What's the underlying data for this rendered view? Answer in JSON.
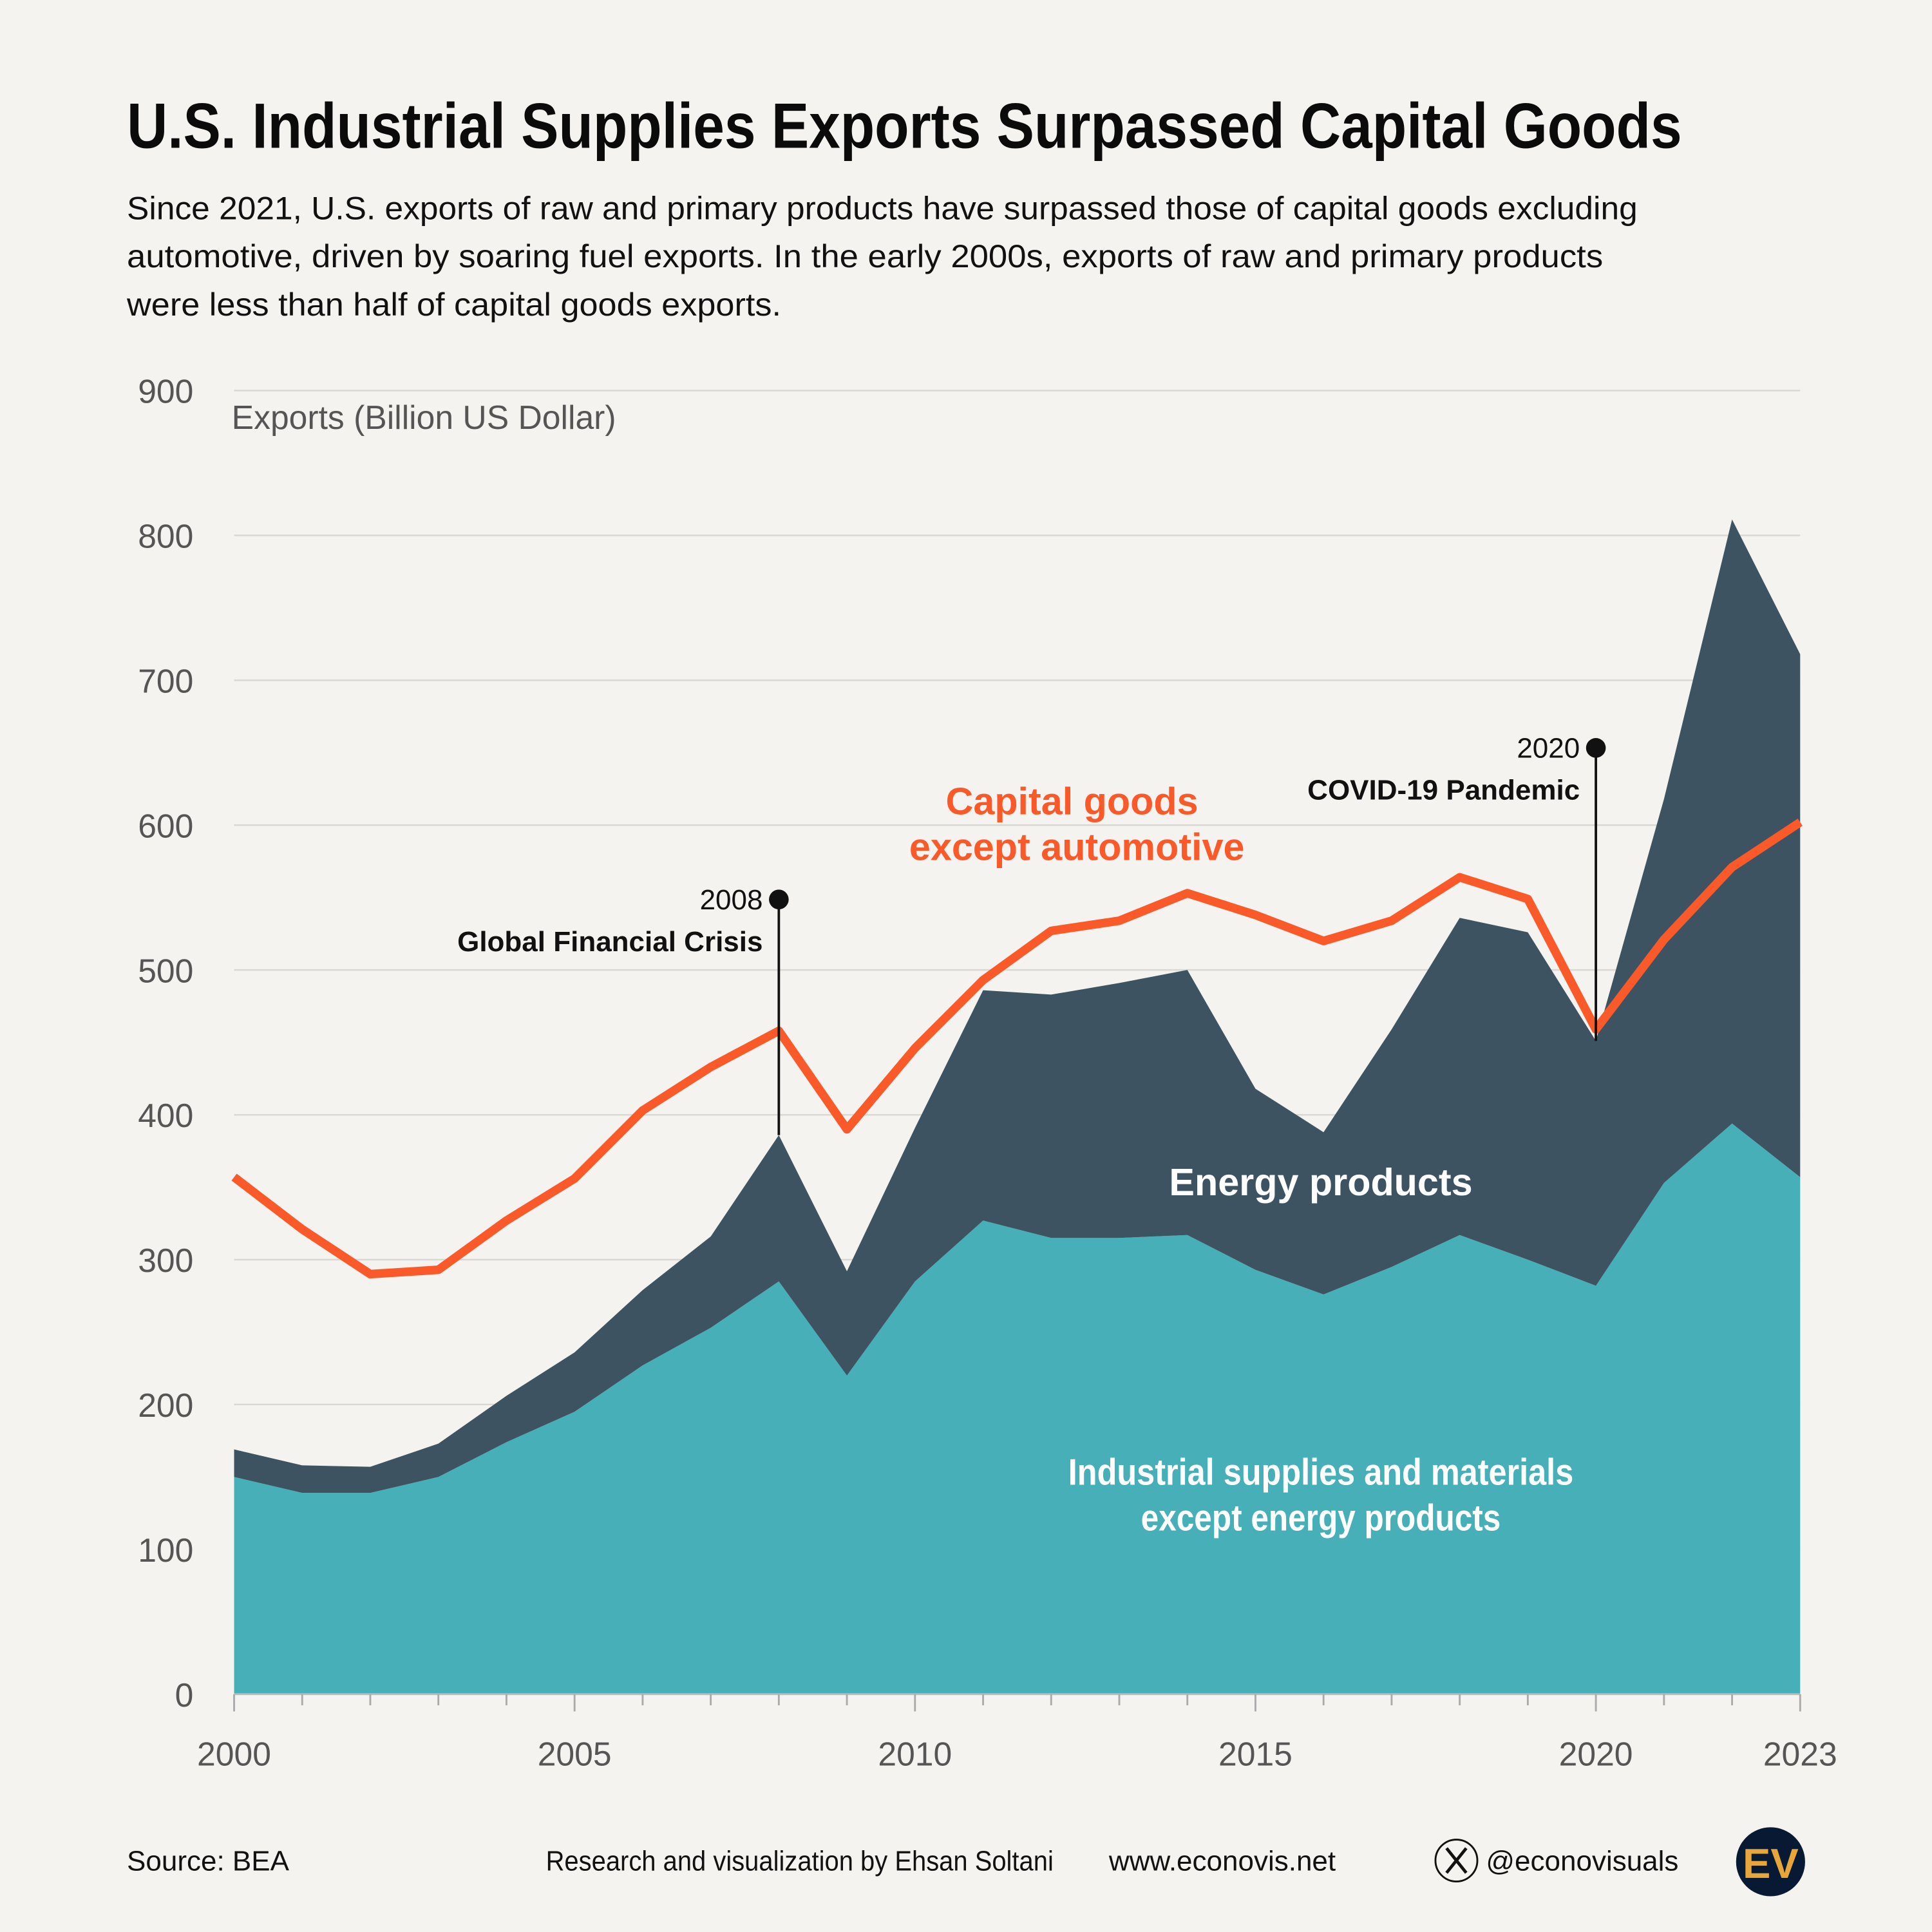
{
  "title": "U.S. Industrial Supplies Exports Surpassed Capital Goods",
  "subtitle": [
    "Since 2021, U.S. exports of raw and primary products have surpassed those of capital goods excluding",
    "automotive, driven by soaring fuel exports. In the early 2000s, exports of raw and primary products",
    "were less than half of capital goods exports."
  ],
  "footer": {
    "source": "Source: BEA",
    "credit": "Research and visualization by Ehsan Soltani",
    "website": "www.econovis.net",
    "handle": "@econovisuals",
    "logo_text": "EV"
  },
  "chart_data": {
    "type": "area",
    "stacked": true,
    "title": "U.S. Industrial Supplies Exports Surpassed Capital Goods",
    "ylabel": "Exports (Billion US Dollar)",
    "xlabel": "",
    "ylim": [
      0,
      900
    ],
    "yticks": [
      "0",
      "100",
      "200",
      "300",
      "400",
      "500",
      "600",
      "700",
      "800",
      "900"
    ],
    "xticks": [
      "2000",
      "2005",
      "2010",
      "2015",
      "2020",
      "2023"
    ],
    "grid": "horizontal",
    "x": [
      2000,
      2001,
      2002,
      2003,
      2004,
      2005,
      2006,
      2007,
      2008,
      2009,
      2010,
      2011,
      2012,
      2013,
      2014,
      2015,
      2016,
      2017,
      2018,
      2019,
      2020,
      2021,
      2022,
      2023
    ],
    "series": [
      {
        "name": "Industrial supplies and materials except energy products",
        "kind": "area",
        "color": "#46afb7",
        "values": [
          150,
          139,
          139,
          150,
          174,
          195,
          227,
          253,
          285,
          220,
          285,
          327,
          315,
          315,
          317,
          293,
          276,
          295,
          317,
          300,
          282,
          353,
          394,
          357
        ]
      },
      {
        "name": "Energy products",
        "kind": "area",
        "color": "#3d5361",
        "values": [
          19,
          19,
          18,
          23,
          32,
          41,
          52,
          63,
          101,
          72,
          106,
          159,
          168,
          176,
          183,
          125,
          112,
          164,
          219,
          226,
          169,
          265,
          417,
          361
        ]
      },
      {
        "name": "Capital goods except automotive",
        "kind": "line",
        "color": "#fa5a2a",
        "values": [
          357,
          321,
          290,
          293,
          327,
          356,
          403,
          433,
          458,
          390,
          446,
          493,
          527,
          534,
          553,
          538,
          520,
          534,
          564,
          549,
          459,
          521,
          571,
          602
        ]
      }
    ],
    "series_labels": {
      "industrial": [
        "Industrial supplies and materials",
        "except energy products"
      ],
      "energy": "Energy products",
      "capital": [
        "Capital goods",
        "except automotive"
      ]
    },
    "annotations": [
      {
        "x": 2008,
        "year": "2008",
        "text": "Global Financial Crisis"
      },
      {
        "x": 2020,
        "year": "2020",
        "text": "COVID-19 Pandemic"
      }
    ]
  }
}
